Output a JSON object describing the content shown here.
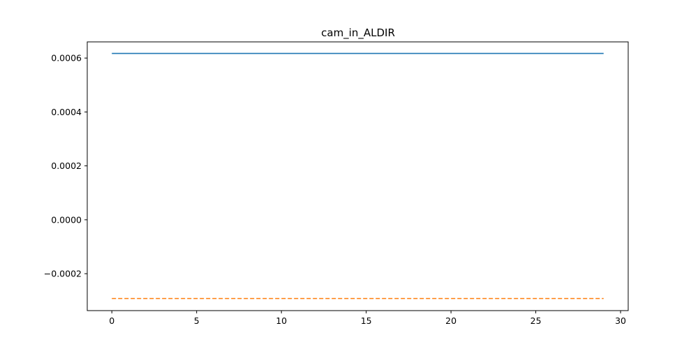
{
  "chart_data": {
    "type": "line",
    "title": "cam_in_ALDIR",
    "xlabel": "",
    "ylabel": "",
    "xlim": [
      -1.45,
      30.45
    ],
    "ylim": [
      -0.000337,
      0.00066
    ],
    "x_ticks": [
      0,
      5,
      10,
      15,
      20,
      25,
      30
    ],
    "x_tick_labels": [
      "0",
      "5",
      "10",
      "15",
      "20",
      "25",
      "30"
    ],
    "y_ticks": [
      -0.0002,
      0.0,
      0.0002,
      0.0004,
      0.0006
    ],
    "y_tick_labels": [
      "−0.0002",
      "0.0000",
      "0.0002",
      "0.0004",
      "0.0006"
    ],
    "grid": false,
    "series": [
      {
        "color": "#1f77b4",
        "linestyle": "solid",
        "x": [
          0,
          29
        ],
        "y": [
          0.000617,
          0.000617
        ]
      },
      {
        "color": "#ff7f0e",
        "linestyle": "dashed",
        "x": [
          0,
          29
        ],
        "y": [
          -0.000292,
          -0.000292
        ]
      }
    ]
  }
}
